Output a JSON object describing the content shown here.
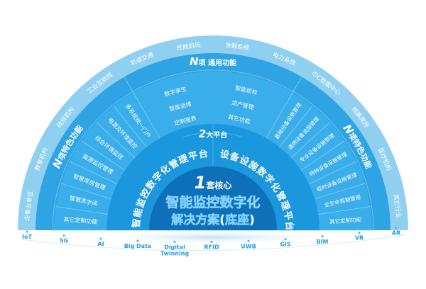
{
  "colors": {
    "outer_ring": "#8fd0f1",
    "band": "#2ea4e5",
    "cells": "#3aaeea",
    "platform": "#1b97de",
    "core": "#0e70b8",
    "tech_text": "#2a9bd8"
  },
  "core": {
    "number": "1",
    "label": "套核心",
    "line1": "智能监控数字化",
    "line2": "解决方案(底座)"
  },
  "platforms": {
    "number": "2",
    "label": "大平台",
    "left": "智能监控数字化管理平台",
    "right": "设备设施数字化管理平台"
  },
  "features": {
    "general_title_n": "N",
    "general_title": "项 通用功能",
    "general_items": [
      "数字孪生",
      "智能运维",
      "定制报表",
      "智能巡检",
      "资产管理",
      "其它功能"
    ],
    "special_title_n": "N",
    "special_title": "项特色功能",
    "left_items": [
      "多系统统一门户",
      "电源及环境监控",
      "综合环境监控",
      "能源监控管理",
      "智慧库房管理",
      "智慧洗手间",
      "其它定制功能"
    ],
    "right_items": [
      "基础设备设施管理",
      "通用设备设施管理",
      "专业设备设施管理",
      "特种设备设施管理",
      "临时设备设施管理",
      "全生命周期管理",
      "其它定制功能"
    ]
  },
  "industries": [
    "企事业单位",
    "教育机构",
    "政府机构",
    "工业互联网",
    "轨道交通",
    "民航机场",
    "金融系统",
    "电力系统",
    "IDC数据中心",
    "档案库房",
    "医疗机构",
    "其它行业"
  ],
  "technologies": [
    "IoT",
    "5G",
    "AI",
    "Big Data",
    "Digital Twinning",
    "RFID",
    "UWB",
    "GIS",
    "BIM",
    "VR",
    "AR"
  ]
}
